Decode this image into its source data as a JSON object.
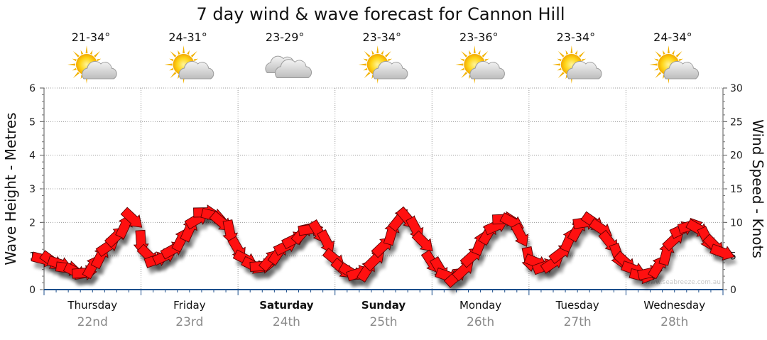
{
  "chart_data": {
    "type": "line",
    "title": "7 day wind & wave forecast for Cannon Hill",
    "ylabel_left": "Wave Height - Metres",
    "ylabel_right": "Wind Speed - Knots",
    "ylim_left": [
      0,
      6
    ],
    "ylim_right": [
      0,
      30
    ],
    "yticks_left": [
      "0",
      "1",
      "2",
      "3",
      "4",
      "5",
      "6"
    ],
    "yticks_right": [
      "0",
      "5",
      "10",
      "15",
      "20",
      "25",
      "30"
    ],
    "grid": "dotted",
    "watermark": "www.seabreeze.com.au",
    "days": [
      {
        "day": "Thursday",
        "date": "22nd",
        "temp": "21-34°",
        "icon": "sun-cloud-icon",
        "bold": false
      },
      {
        "day": "Friday",
        "date": "23rd",
        "temp": "24-31°",
        "icon": "sun-cloud-icon",
        "bold": false
      },
      {
        "day": "Saturday",
        "date": "24th",
        "temp": "23-29°",
        "icon": "cloud-icon",
        "bold": true
      },
      {
        "day": "Sunday",
        "date": "25th",
        "temp": "23-34°",
        "icon": "sun-cloud-icon",
        "bold": true
      },
      {
        "day": "Monday",
        "date": "26th",
        "temp": "23-36°",
        "icon": "sun-cloud-icon",
        "bold": false
      },
      {
        "day": "Tuesday",
        "date": "27th",
        "temp": "23-34°",
        "icon": "sun-cloud-icon",
        "bold": false
      },
      {
        "day": "Wednesday",
        "date": "28th",
        "temp": "24-34°",
        "icon": "sun-cloud-icon",
        "bold": false
      }
    ],
    "series": [
      {
        "x_hours": [
          0,
          2,
          4,
          6,
          8,
          10,
          12,
          14,
          16,
          18,
          20,
          22,
          24,
          26,
          28,
          30,
          32,
          34,
          36,
          38,
          40,
          42,
          44,
          46,
          48,
          50,
          52,
          54,
          56,
          58,
          60,
          62,
          64,
          66,
          68,
          70,
          72,
          74,
          76,
          78,
          80,
          82,
          84,
          86,
          88,
          90,
          92,
          94,
          96,
          98,
          100,
          102,
          104,
          106,
          108,
          110,
          112,
          114,
          116,
          118,
          120,
          122,
          124,
          126,
          128,
          130,
          132,
          134,
          136,
          138,
          140,
          142,
          144,
          146,
          148,
          150,
          152,
          154,
          156,
          158,
          160,
          162,
          164,
          166,
          168
        ],
        "wind_knots": [
          4.5,
          4.2,
          3.8,
          3.2,
          2.6,
          2.5,
          3.5,
          5.0,
          6.5,
          8.0,
          9.5,
          10.5,
          7.0,
          5.0,
          4.5,
          5.0,
          6.0,
          7.5,
          9.0,
          10.5,
          11.5,
          11.0,
          10.0,
          8.5,
          6.0,
          4.5,
          3.5,
          3.5,
          4.5,
          5.5,
          6.5,
          7.5,
          8.5,
          9.0,
          8.5,
          7.0,
          4.5,
          3.0,
          2.5,
          2.5,
          3.0,
          4.5,
          6.5,
          8.5,
          10.5,
          10.5,
          9.0,
          7.0,
          4.0,
          3.0,
          2.0,
          2.0,
          3.0,
          5.0,
          7.0,
          8.5,
          9.5,
          10.5,
          10.0,
          8.0,
          4.5,
          4.0,
          3.5,
          4.0,
          5.5,
          7.5,
          9.0,
          10.0,
          10.0,
          9.0,
          7.0,
          5.0,
          4.0,
          3.0,
          2.0,
          2.5,
          3.5,
          5.5,
          7.5,
          9.0,
          9.5,
          9.0,
          7.5,
          6.5,
          5.5
        ]
      }
    ]
  }
}
